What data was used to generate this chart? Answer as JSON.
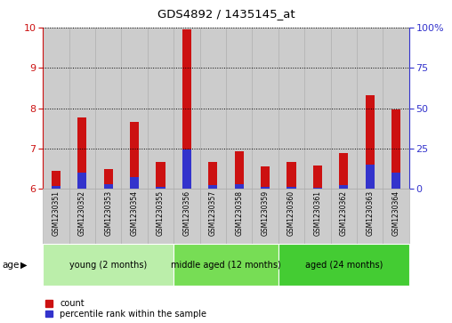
{
  "title": "GDS4892 / 1435145_at",
  "samples": [
    "GSM1230351",
    "GSM1230352",
    "GSM1230353",
    "GSM1230354",
    "GSM1230355",
    "GSM1230356",
    "GSM1230357",
    "GSM1230358",
    "GSM1230359",
    "GSM1230360",
    "GSM1230361",
    "GSM1230362",
    "GSM1230363",
    "GSM1230364"
  ],
  "count_values": [
    6.45,
    7.78,
    6.5,
    7.65,
    6.67,
    9.95,
    6.67,
    6.93,
    6.55,
    6.67,
    6.57,
    6.88,
    8.32,
    7.98
  ],
  "percentile_values": [
    6.07,
    6.4,
    6.12,
    6.3,
    6.06,
    6.97,
    6.1,
    6.12,
    6.06,
    6.06,
    6.04,
    6.1,
    6.6,
    6.4
  ],
  "ylim_left": [
    6,
    10
  ],
  "ylim_right": [
    0,
    100
  ],
  "yticks_left": [
    6,
    7,
    8,
    9,
    10
  ],
  "yticks_right": [
    0,
    25,
    50,
    75,
    100
  ],
  "ytick_right_labels": [
    "0",
    "25",
    "50",
    "75",
    "100%"
  ],
  "bar_bottom": 6.0,
  "count_color": "#cc1111",
  "percentile_color": "#3333cc",
  "groups": [
    {
      "label": "young (2 months)",
      "start": 0,
      "end": 5,
      "color": "#bbeeaa"
    },
    {
      "label": "middle aged (12 months)",
      "start": 5,
      "end": 9,
      "color": "#77dd55"
    },
    {
      "label": "aged (24 months)",
      "start": 9,
      "end": 14,
      "color": "#44cc33"
    }
  ],
  "age_label": "age",
  "legend_count_label": "count",
  "legend_percentile_label": "percentile rank within the sample",
  "tick_color_left": "#cc1111",
  "tick_color_right": "#3333cc",
  "bar_cell_color": "#cccccc",
  "bar_cell_edge": "#aaaaaa"
}
